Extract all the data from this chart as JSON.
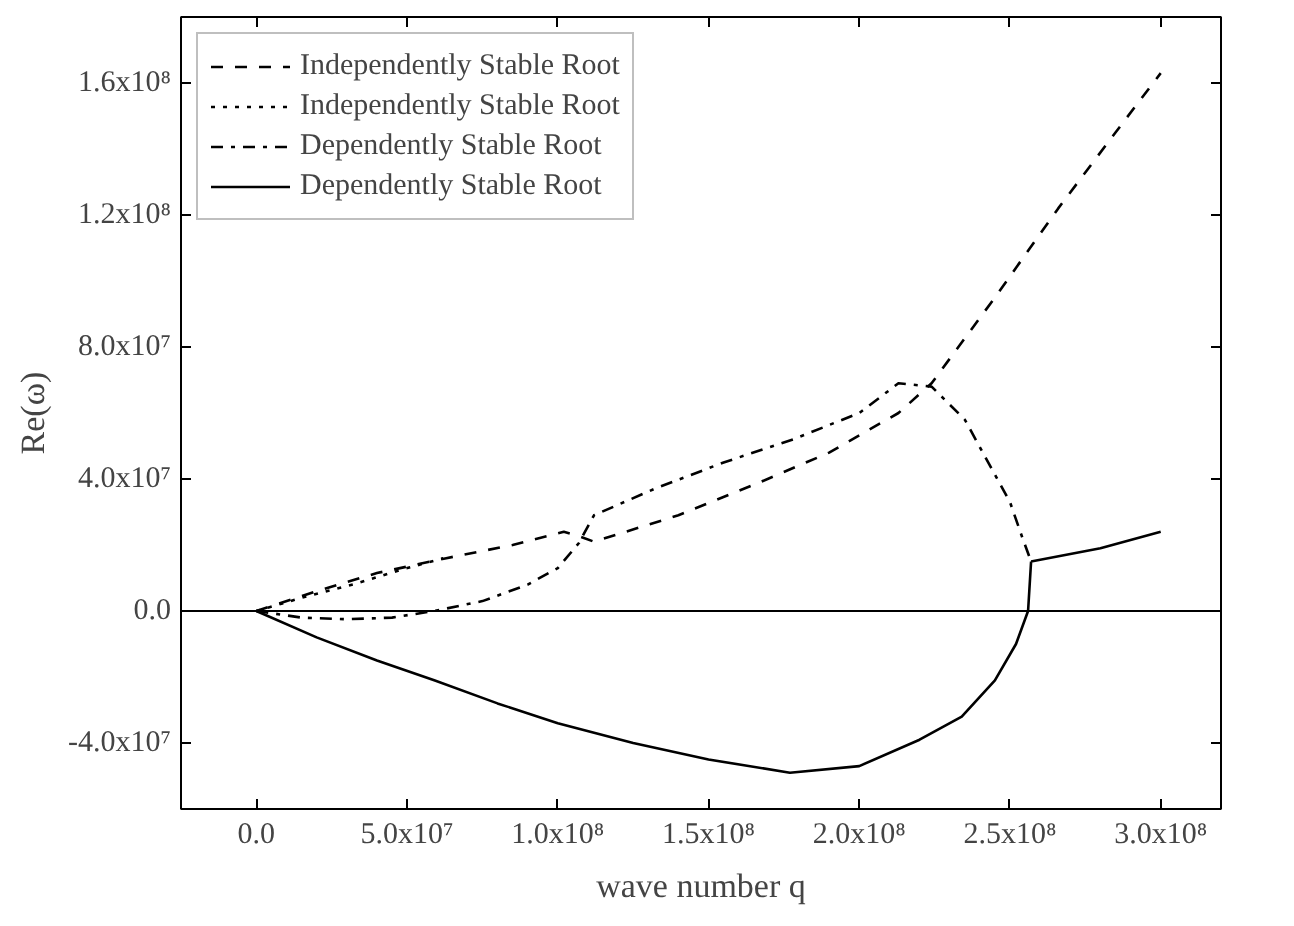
{
  "chart_data": {
    "type": "line",
    "xlabel": "wave number q",
    "ylabel": "Re(ω)",
    "xlim": [
      -25000000,
      320000000
    ],
    "ylim": [
      -60000000,
      180000000
    ],
    "xticks": [
      {
        "value": 0,
        "label": "0.0"
      },
      {
        "value": 50000000,
        "label": "5.0x10⁷"
      },
      {
        "value": 100000000,
        "label": "1.0x10⁸"
      },
      {
        "value": 150000000,
        "label": "1.5x10⁸"
      },
      {
        "value": 200000000,
        "label": "2.0x10⁸"
      },
      {
        "value": 250000000,
        "label": "2.5x10⁸"
      },
      {
        "value": 300000000,
        "label": "3.0x10⁸"
      }
    ],
    "yticks": [
      {
        "value": -40000000,
        "label": "-4.0x10⁷"
      },
      {
        "value": 0,
        "label": "0.0"
      },
      {
        "value": 40000000,
        "label": "4.0x10⁷"
      },
      {
        "value": 80000000,
        "label": "8.0x10⁷"
      },
      {
        "value": 120000000,
        "label": "1.2x10⁸"
      },
      {
        "value": 160000000,
        "label": "1.6x10⁸"
      }
    ],
    "grid": false,
    "legend": "top left",
    "marker": "none",
    "ref_lines": [
      {
        "axis": "y",
        "value": 0,
        "color": "#000000",
        "line_style": "solid"
      }
    ],
    "series": [
      {
        "name": "Independently Stable Root",
        "color": "#000000",
        "line_style": "dashed",
        "x": [
          0,
          20000000,
          40000000,
          63000000,
          85000000,
          102000000,
          106000000,
          112000000,
          140000000,
          167000000,
          190000000,
          213000000,
          224000000,
          245000000,
          266000000,
          285000000,
          300000000
        ],
        "values": [
          0,
          6000000,
          11500000,
          16000000,
          20000000,
          24000000,
          23000000,
          21000000,
          29000000,
          39000000,
          48000000,
          60000000,
          69000000,
          95000000,
          122000000,
          145000000,
          163000000
        ]
      },
      {
        "name": "Independently Stable Root",
        "color": "#000000",
        "line_style": "dotted",
        "x": [
          0,
          15000000,
          32000000,
          48000000,
          62000000
        ],
        "values": [
          0,
          4000000,
          8000000,
          12500000,
          16000000
        ]
      },
      {
        "name": "Dependently Stable Root",
        "color": "#000000",
        "line_style": "dashdot",
        "x": [
          0,
          15000000,
          30000000,
          45000000,
          59000000,
          75000000,
          90000000,
          100000000,
          107000000,
          112000000,
          132000000,
          155000000,
          178000000,
          200000000,
          213000000,
          224000000,
          235000000,
          244000000,
          250000000,
          254000000,
          257000000
        ],
        "values": [
          0,
          -2000000,
          -2500000,
          -2000000,
          0,
          3000000,
          8000000,
          13000000,
          20600000,
          29000000,
          37000000,
          45000000,
          52000000,
          60000000,
          69000000,
          68000000,
          58000000,
          43000000,
          33000000,
          22500000,
          15000000
        ]
      },
      {
        "name": "Dependently Stable Root",
        "color": "#000000",
        "line_style": "solid",
        "x": [
          0,
          20000000,
          40000000,
          59000000,
          80000000,
          100000000,
          125000000,
          150000000,
          177000000,
          200000000,
          220000000,
          234000000,
          245000000,
          252000000,
          256000000,
          257000000,
          null,
          257000000,
          280000000,
          300000000
        ],
        "values": [
          0,
          -8000000,
          -15000000,
          -21000000,
          -28000000,
          -34000000,
          -40000000,
          -45000000,
          -49000000,
          -47000000,
          -39000000,
          -32000000,
          -21000000,
          -10000000,
          0,
          15000000,
          null,
          15000000,
          19000000,
          24000000
        ]
      }
    ]
  }
}
